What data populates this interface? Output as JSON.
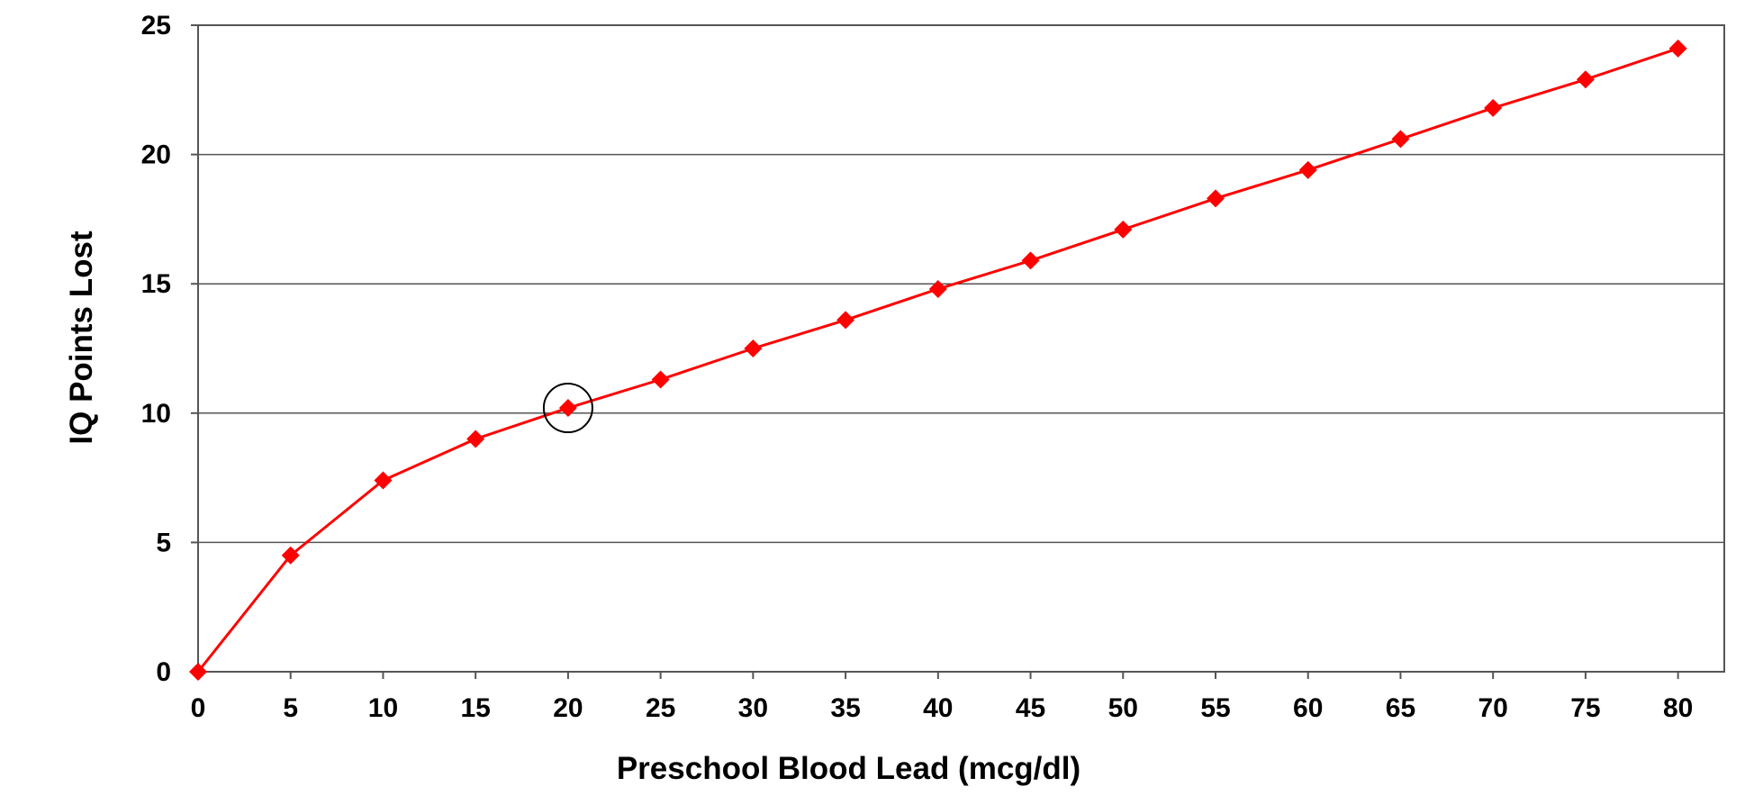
{
  "chart_data": {
    "type": "line",
    "title": "",
    "xlabel": "Preschool Blood Lead (mcg/dl)",
    "ylabel": "IQ Points Lost",
    "xlim": [
      0,
      82.5
    ],
    "ylim": [
      0,
      25
    ],
    "xticks": [
      0,
      5,
      10,
      15,
      20,
      25,
      30,
      35,
      40,
      45,
      50,
      55,
      60,
      65,
      70,
      75,
      80
    ],
    "yticks": [
      0,
      5,
      10,
      15,
      20,
      25
    ],
    "grid": "horizontal",
    "legend": "none",
    "series": [
      {
        "color": "#ff0000",
        "marker": "diamond",
        "x": [
          0,
          5,
          10,
          15,
          20,
          25,
          30,
          35,
          40,
          45,
          50,
          55,
          60,
          65,
          70,
          75,
          80
        ],
        "y": [
          0,
          4.5,
          7.4,
          9.0,
          10.2,
          11.3,
          12.5,
          13.6,
          14.8,
          15.9,
          17.1,
          18.3,
          19.4,
          20.6,
          21.8,
          22.9,
          24.1
        ]
      }
    ],
    "highlight": {
      "x": 20,
      "y": 10.2,
      "shape": "circle",
      "color": "#000000"
    }
  }
}
